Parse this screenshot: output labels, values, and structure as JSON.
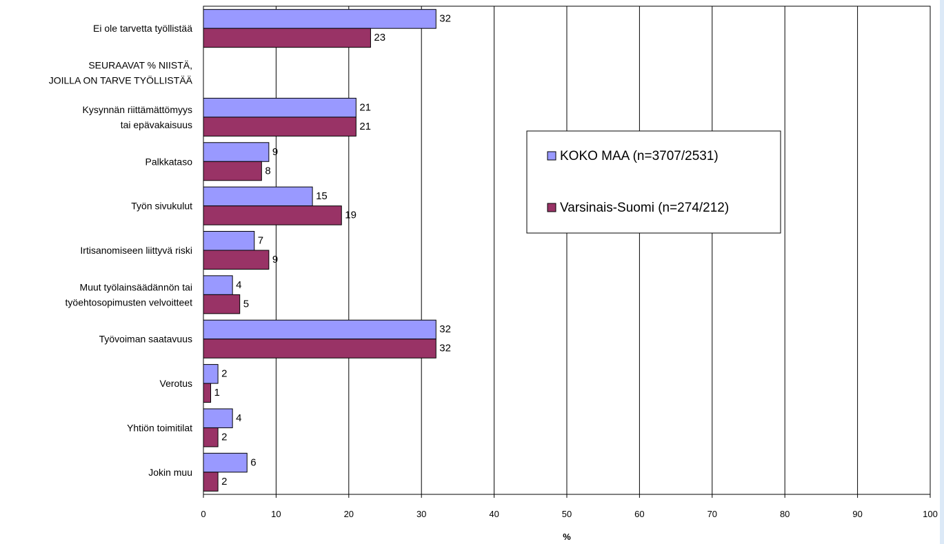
{
  "chart_data": {
    "type": "bar",
    "orientation": "horizontal",
    "categories": [
      [
        "Ei ole tarvetta työllistää"
      ],
      [
        "SEURAAVAT % NIISTÄ,",
        "JOILLA ON TARVE TYÖLLISTÄÄ"
      ],
      [
        "Kysynnän riittämättömyys",
        "tai epävakaisuus"
      ],
      [
        "Palkkataso"
      ],
      [
        "Työn sivukulut"
      ],
      [
        "Irtisanomiseen liittyvä riski"
      ],
      [
        "Muut työlainsäädännön tai",
        "työehtosopimusten velvoitteet"
      ],
      [
        "Työvoiman saatavuus"
      ],
      [
        "Verotus"
      ],
      [
        "Yhtiön toimitilat"
      ],
      [
        "Jokin muu"
      ]
    ],
    "series": [
      {
        "name": "KOKO MAA (n=3707/2531)",
        "color": "#9999ff",
        "values": [
          32,
          null,
          21,
          9,
          15,
          7,
          4,
          32,
          2,
          4,
          6
        ]
      },
      {
        "name": "Varsinais-Suomi (n=274/212)",
        "color": "#993366",
        "values": [
          23,
          null,
          21,
          8,
          19,
          9,
          5,
          32,
          1,
          2,
          2
        ]
      }
    ],
    "xlim": [
      0,
      100
    ],
    "xticks": [
      0,
      10,
      20,
      30,
      40,
      50,
      60,
      70,
      80,
      90,
      100
    ],
    "xlabel": "%",
    "grid": "vertical",
    "legend_position": "right-center"
  }
}
